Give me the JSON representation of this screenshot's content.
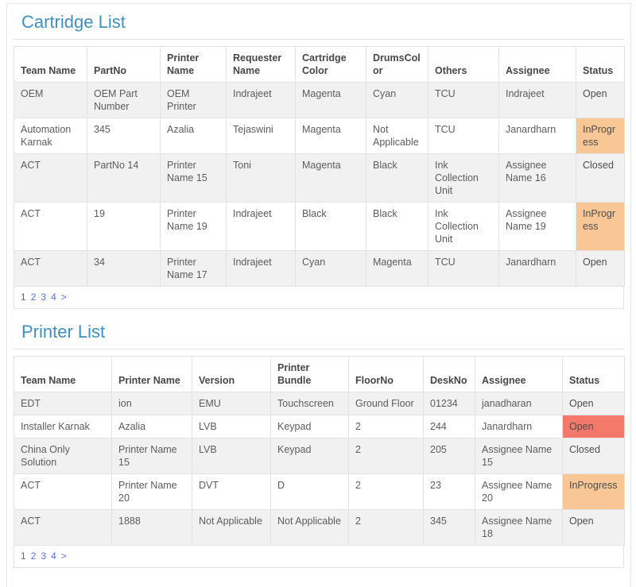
{
  "sections": [
    {
      "id": "cartridge-list",
      "title": "Cartridge List",
      "columns": [
        "Team Name",
        "PartNo",
        "Printer Name",
        "Requester Name",
        "Cartridge Color",
        "DrumsColor",
        "Others",
        "Assignee",
        "Status"
      ],
      "rows": [
        [
          "OEM",
          "OEM Part Number",
          "OEM Printer",
          "Indrajeet",
          "Magenta",
          "Cyan",
          "TCU",
          "Indrajeet",
          "Open"
        ],
        [
          "Automation Karnak",
          "345",
          "Azalia",
          "Tejaswini",
          "Magenta",
          "Not Applicable",
          "TCU",
          "Janardharn",
          "InProgress"
        ],
        [
          "ACT",
          "PartNo 14",
          "Printer Name 15",
          "Toni",
          "Magenta",
          "Black",
          "Ink Collection Unit",
          "Assignee Name 16",
          "Closed"
        ],
        [
          "ACT",
          "19",
          "Printer Name 19",
          "Indrajeet",
          "Black",
          "Black",
          "Ink Collection Unit",
          "Assignee Name 19",
          "InProgress"
        ],
        [
          "ACT",
          "34",
          "Printer Name 17",
          "Indrajeet",
          "Cyan",
          "Magenta",
          "TCU",
          "Janardharn",
          "Open"
        ]
      ],
      "pagination": {
        "current": "1",
        "links": [
          "2",
          "3",
          "4",
          ">"
        ]
      }
    },
    {
      "id": "printer-list",
      "title": "Printer List",
      "columns": [
        "Team Name",
        "Printer Name",
        "Version",
        "Printer Bundle",
        "FloorNo",
        "DeskNo",
        "Assignee",
        "Status"
      ],
      "rows": [
        [
          "EDT",
          "ion",
          "EMU",
          "Touchscreen",
          "Ground Floor",
          "01234",
          "janadharan",
          "Open"
        ],
        [
          "Installer Karnak",
          "Azalia",
          "LVB",
          "Keypad",
          "2",
          "244",
          "Janardharn",
          "Open"
        ],
        [
          "China Only Solution",
          "Printer Name 15",
          "LVB",
          "Keypad",
          "2",
          "205",
          "Assignee Name 15",
          "Closed"
        ],
        [
          "ACT",
          "Printer Name 20",
          "DVT",
          "D",
          "2",
          "23",
          "Assignee Name 20",
          "InProgress"
        ],
        [
          "ACT",
          "1888",
          "Not Applicable",
          "Not Applicable",
          "2",
          "345",
          "Assignee Name 18",
          "Open"
        ]
      ],
      "pagination": {
        "current": "1",
        "links": [
          "2",
          "3",
          "4",
          ">"
        ]
      }
    }
  ],
  "colors": {
    "title": "#3f8fbf",
    "link": "#5b73d8",
    "border": "#e3e3e3",
    "stripe": "#f1f1f1",
    "status": {
      "Open": "#f4796b",
      "InProgress": "#f9c795",
      "Closed": "#3eb294"
    }
  }
}
